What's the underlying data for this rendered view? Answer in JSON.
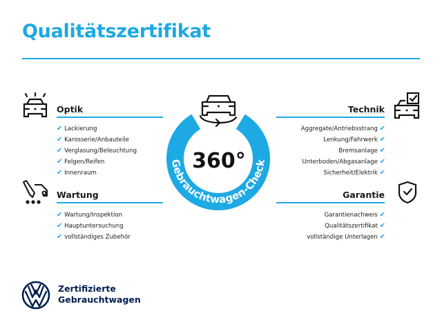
{
  "title": "Qualitätszertifikat",
  "colors": {
    "accent": "#1da9e3",
    "text": "#1a1a1a",
    "brand": "#001e50"
  },
  "center": {
    "degrees": "360°",
    "arc_text": "Gebrauchtwagen-Check",
    "icon": "car-rotate-icon"
  },
  "sections": {
    "optik": {
      "heading": "Optik",
      "icon": "car-lights-icon",
      "items": [
        "Lackierung",
        "Karosserie/Anbauteile",
        "Verglasung/Beleuchtung",
        "Felgen/Reifen",
        "Innenraum"
      ]
    },
    "wartung": {
      "heading": "Wartung",
      "icon": "service-car-icon",
      "items": [
        "Wartung/Inspektion",
        "Hauptuntersuchung",
        "vollständiges Zubehör"
      ]
    },
    "technik": {
      "heading": "Technik",
      "icon": "car-checkbox-icon",
      "items": [
        "Aggregate/Antriebsstrang",
        "Lenkung/Fahrwerk",
        "Bremsanlage",
        "Unterboden/Abgasanlage",
        "Sicherheit/Elektrik"
      ]
    },
    "garantie": {
      "heading": "Garantie",
      "icon": "shield-check-icon",
      "items": [
        "Garantienachweis",
        "Qualitätszertifikat",
        "vollständige Unterlagen"
      ]
    }
  },
  "check_glyph": "✔",
  "brand": {
    "line1": "Zertifizierte",
    "line2": "Gebrauchtwagen",
    "logo": "vw-logo"
  }
}
